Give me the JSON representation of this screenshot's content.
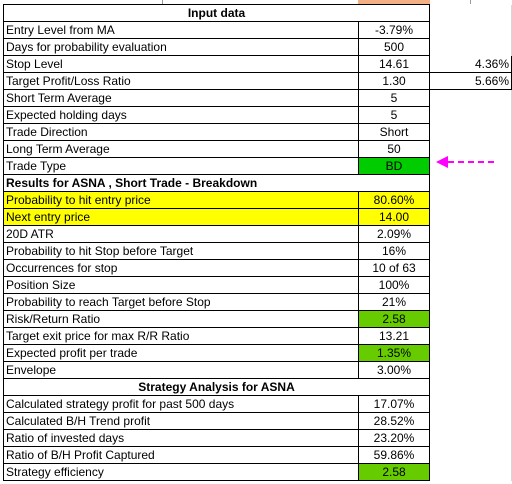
{
  "sections": {
    "input_header": "Input data",
    "results_header": "Results for ASNA , Short Trade - Breakdown",
    "strategy_header": "Strategy Analysis for ASNA"
  },
  "rows": [
    {
      "label": "Entry Level from MA",
      "value": "-3.79%"
    },
    {
      "label": "Days for probability evaluation",
      "value": "500"
    },
    {
      "label": "Stop Level",
      "value": "14.61",
      "extra": "4.36%"
    },
    {
      "label": "Target Profit/Loss Ratio",
      "value": "1.30",
      "extra": "5.66%"
    },
    {
      "label": "Short Term Average",
      "value": "5"
    },
    {
      "label": "Expected holding days",
      "value": "5"
    },
    {
      "label": "Trade Direction",
      "value": "Short"
    },
    {
      "label": "Long Term Average",
      "value": "50"
    },
    {
      "label": "Trade Type",
      "value": "BD"
    },
    {
      "label": "Probability to hit entry price",
      "value": "80.60%"
    },
    {
      "label": "Next entry price",
      "value": "14.00"
    },
    {
      "label": "20D ATR",
      "value": "2.09%"
    },
    {
      "label": "Probability to hit Stop before Target",
      "value": "16%"
    },
    {
      "label": "Occurrences for stop",
      "value": "10 of 63"
    },
    {
      "label": "Position Size",
      "value": "100%"
    },
    {
      "label": "Probability to reach Target before Stop",
      "value": "21%"
    },
    {
      "label": "Risk/Return Ratio",
      "value": "2.58"
    },
    {
      "label": "Target exit price for max R/R Ratio",
      "value": "13.21"
    },
    {
      "label": "Expected profit per trade",
      "value": "1.35%"
    },
    {
      "label": "Envelope",
      "value": "3.00%"
    },
    {
      "label": "Calculated strategy profit for past 500 days",
      "value": "17.07%"
    },
    {
      "label": "Calculated B/H Trend profit",
      "value": "28.52%"
    },
    {
      "label": "Ratio of invested days",
      "value": "23.20%"
    },
    {
      "label": "Ratio of B/H Profit Captured",
      "value": "59.86%"
    },
    {
      "label": "Strategy efficiency",
      "value": "2.58"
    }
  ],
  "colors": {
    "highlight_yellow": "#ffff00",
    "highlight_green": "#66cc00",
    "trade_type_green": "#00cc00",
    "arrow_magenta": "#ff00ff"
  },
  "icons": {
    "pointer": "dashed-arrow-left-icon"
  }
}
